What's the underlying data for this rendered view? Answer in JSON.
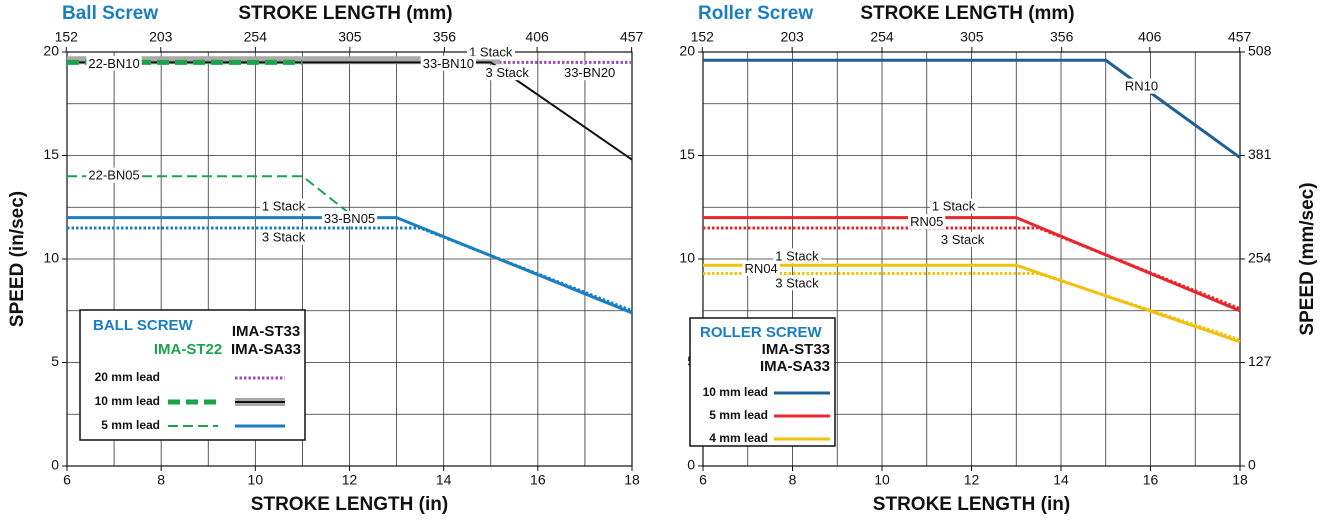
{
  "chart_data": [
    {
      "type": "line",
      "title": "Ball Screw",
      "xlabel": "STROKE LENGTH (in)",
      "x2label": "STROKE LENGTH (mm)",
      "ylabel": "SPEED (in/sec)",
      "xlim": [
        6,
        18
      ],
      "xticks": [
        6,
        8,
        10,
        12,
        14,
        16,
        18
      ],
      "xminorticks": [
        7,
        9,
        11,
        13,
        15,
        17
      ],
      "x2lim": [
        152.4,
        457.2
      ],
      "x2ticks": [
        152,
        203,
        254,
        305,
        356,
        406,
        457
      ],
      "ylim": [
        0,
        20
      ],
      "yticks": [
        0,
        5,
        10,
        15,
        20
      ],
      "yminorticks": [
        2.5,
        7.5,
        12.5,
        17.5
      ],
      "grid": true,
      "series": [
        {
          "x": [
            6,
            18
          ],
          "values": [
            19.5,
            19.5
          ],
          "color": "#9b4fb0",
          "style": "dotted",
          "width": 3
        },
        {
          "x": [
            6,
            15.2
          ],
          "values": [
            19.6,
            19.6
          ],
          "color": "#a9a9a9",
          "style": "solid",
          "width": 8
        },
        {
          "x": [
            6,
            15,
            18
          ],
          "values": [
            19.5,
            19.5,
            14.8
          ],
          "color": "#111111",
          "style": "solid",
          "width": 2
        },
        {
          "x": [
            6,
            11
          ],
          "values": [
            19.5,
            19.5
          ],
          "color": "#1aa34a",
          "style": "dashed",
          "width": 5
        },
        {
          "x": [
            6,
            11,
            12
          ],
          "values": [
            14,
            14,
            12.2
          ],
          "color": "#1aa34a",
          "style": "dashed",
          "width": 2
        },
        {
          "x": [
            6,
            13,
            18
          ],
          "values": [
            12,
            12,
            7.4
          ],
          "color": "#1b7ec2",
          "style": "solid",
          "width": 3
        },
        {
          "x": [
            6,
            13.5,
            18
          ],
          "values": [
            11.5,
            11.5,
            7.5
          ],
          "color": "#1b7ec2",
          "style": "dotted",
          "width": 3
        }
      ],
      "annotations": [
        "1 Stack",
        "3 Stack",
        "22-BN10",
        "33-BN10",
        "33-BN20",
        "22-BN05",
        "1 Stack",
        "33-BN05",
        "3 Stack"
      ],
      "legend": {
        "title": "BALL SCREW",
        "groups": [
          "IMA-ST22",
          "IMA-ST33",
          "IMA-SA33"
        ],
        "rows": [
          "20 mm lead",
          "10 mm lead",
          "5 mm lead"
        ]
      }
    },
    {
      "type": "line",
      "title": "Roller Screw",
      "xlabel": "STROKE LENGTH (in)",
      "x2label": "STROKE LENGTH (mm)",
      "y2label": "SPEED (mm/sec)",
      "xlim": [
        6,
        18
      ],
      "xticks": [
        6,
        8,
        10,
        12,
        14,
        16,
        18
      ],
      "xminorticks": [
        7,
        9,
        11,
        13,
        15,
        17
      ],
      "x2lim": [
        152.4,
        457.2
      ],
      "x2ticks": [
        152,
        203,
        254,
        305,
        356,
        406,
        457
      ],
      "ylim": [
        0,
        20
      ],
      "yticks": [
        0,
        5,
        10,
        15,
        20
      ],
      "yminorticks": [
        2.5,
        7.5,
        12.5,
        17.5
      ],
      "y2lim": [
        0,
        508
      ],
      "y2ticks": [
        0,
        127,
        254,
        381,
        508
      ],
      "grid": true,
      "series": [
        {
          "x": [
            6,
            15,
            18
          ],
          "values": [
            19.6,
            19.6,
            14.9
          ],
          "color": "#1d5f96",
          "style": "solid",
          "width": 3
        },
        {
          "x": [
            6,
            13,
            18
          ],
          "values": [
            12,
            12,
            7.5
          ],
          "color": "#e8262b",
          "style": "solid",
          "width": 3
        },
        {
          "x": [
            6,
            13.5,
            18
          ],
          "values": [
            11.5,
            11.5,
            7.6
          ],
          "color": "#e8262b",
          "style": "dotted",
          "width": 3
        },
        {
          "x": [
            6,
            13,
            18
          ],
          "values": [
            9.7,
            9.7,
            6.0
          ],
          "color": "#f2c10f",
          "style": "solid",
          "width": 3
        },
        {
          "x": [
            6,
            13.5,
            18
          ],
          "values": [
            9.3,
            9.3,
            6.1
          ],
          "color": "#f2c10f",
          "style": "dotted",
          "width": 3
        }
      ],
      "annotations": [
        "RN10",
        "1 Stack",
        "RN05",
        "3 Stack",
        "1 Stack",
        "RN04",
        "3 Stack"
      ],
      "legend": {
        "title": "ROLLER SCREW",
        "groups": [
          "IMA-ST33",
          "IMA-SA33"
        ],
        "rows": [
          "10 mm lead",
          "5 mm lead",
          "4 mm lead"
        ]
      }
    }
  ]
}
